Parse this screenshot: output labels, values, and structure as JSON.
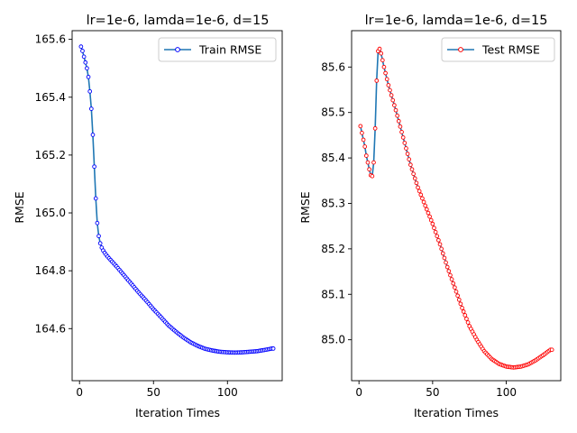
{
  "chart_data": [
    {
      "type": "line",
      "title": "lr=1e-6, lamda=1e-6, d=15",
      "xlabel": "Iteration Times",
      "ylabel": "RMSE",
      "xlim": [
        -5,
        137
      ],
      "ylim": [
        164.42,
        165.63
      ],
      "xticks": [
        0,
        50,
        100
      ],
      "yticks": [
        164.6,
        164.8,
        165.0,
        165.2,
        165.4,
        165.6
      ],
      "ytick_labels": [
        "164.6",
        "164.8",
        "165.0",
        "165.2",
        "165.4",
        "165.6"
      ],
      "xtick_labels": [
        "0",
        "50",
        "100"
      ],
      "legend_position": "upper right",
      "series": [
        {
          "name": "Train RMSE",
          "line_color": "#1f77b4",
          "marker_edge": "#0000ff",
          "marker_face": "#ffffff",
          "anchors": [
            [
              1,
              165.575
            ],
            [
              2,
              165.56
            ],
            [
              3,
              165.54
            ],
            [
              4,
              165.52
            ],
            [
              5,
              165.5
            ],
            [
              6,
              165.47
            ],
            [
              7,
              165.42
            ],
            [
              8,
              165.36
            ],
            [
              9,
              165.27
            ],
            [
              10,
              165.16
            ],
            [
              11,
              165.05
            ],
            [
              12,
              164.965
            ],
            [
              13,
              164.92
            ],
            [
              14,
              164.895
            ],
            [
              15,
              164.88
            ],
            [
              16,
              164.87
            ],
            [
              17,
              164.862
            ],
            [
              18,
              164.855
            ],
            [
              20,
              164.843
            ],
            [
              25,
              164.815
            ],
            [
              30,
              164.785
            ],
            [
              35,
              164.755
            ],
            [
              40,
              164.725
            ],
            [
              45,
              164.697
            ],
            [
              50,
              164.667
            ],
            [
              55,
              164.64
            ],
            [
              60,
              164.612
            ],
            [
              65,
              164.59
            ],
            [
              70,
              164.57
            ],
            [
              75,
              164.553
            ],
            [
              80,
              164.54
            ],
            [
              85,
              164.53
            ],
            [
              90,
              164.524
            ],
            [
              95,
              164.52
            ],
            [
              100,
              164.518
            ],
            [
              105,
              164.517
            ],
            [
              110,
              164.518
            ],
            [
              115,
              164.52
            ],
            [
              120,
              164.522
            ],
            [
              125,
              164.526
            ],
            [
              130,
              164.531
            ]
          ],
          "x_range": [
            1,
            131
          ]
        }
      ]
    },
    {
      "type": "line",
      "title": "lr=1e-6, lamda=1e-6, d=15",
      "xlabel": "Iteration Times",
      "ylabel": "RMSE",
      "xlim": [
        -5,
        137
      ],
      "ylim": [
        84.91,
        85.68
      ],
      "xticks": [
        0,
        50,
        100
      ],
      "yticks": [
        85.0,
        85.1,
        85.2,
        85.3,
        85.4,
        85.5,
        85.6
      ],
      "ytick_labels": [
        "85.0",
        "85.1",
        "85.2",
        "85.3",
        "85.4",
        "85.5",
        "85.6"
      ],
      "xtick_labels": [
        "0",
        "50",
        "100"
      ],
      "legend_position": "upper right",
      "series": [
        {
          "name": "Test RMSE",
          "line_color": "#1f77b4",
          "marker_edge": "#ff0000",
          "marker_face": "#ffffff",
          "anchors": [
            [
              1,
              85.47
            ],
            [
              2,
              85.455
            ],
            [
              3,
              85.44
            ],
            [
              4,
              85.425
            ],
            [
              5,
              85.405
            ],
            [
              6,
              85.39
            ],
            [
              7,
              85.375
            ],
            [
              8,
              85.362
            ],
            [
              9,
              85.36
            ],
            [
              10,
              85.39
            ],
            [
              11,
              85.465
            ],
            [
              12,
              85.57
            ],
            [
              13,
              85.635
            ],
            [
              14,
              85.64
            ],
            [
              15,
              85.63
            ],
            [
              16,
              85.615
            ],
            [
              17,
              85.6
            ],
            [
              20,
              85.56
            ],
            [
              25,
              85.505
            ],
            [
              30,
              85.445
            ],
            [
              35,
              85.385
            ],
            [
              40,
              85.335
            ],
            [
              45,
              85.295
            ],
            [
              50,
              85.255
            ],
            [
              55,
              85.21
            ],
            [
              60,
              85.16
            ],
            [
              65,
              85.115
            ],
            [
              70,
              85.07
            ],
            [
              75,
              85.03
            ],
            [
              80,
              85.0
            ],
            [
              85,
              84.975
            ],
            [
              90,
              84.958
            ],
            [
              95,
              84.947
            ],
            [
              100,
              84.941
            ],
            [
              105,
              84.939
            ],
            [
              110,
              84.941
            ],
            [
              115,
              84.946
            ],
            [
              120,
              84.955
            ],
            [
              125,
              84.966
            ],
            [
              130,
              84.978
            ]
          ],
          "x_range": [
            1,
            131
          ]
        }
      ]
    }
  ]
}
